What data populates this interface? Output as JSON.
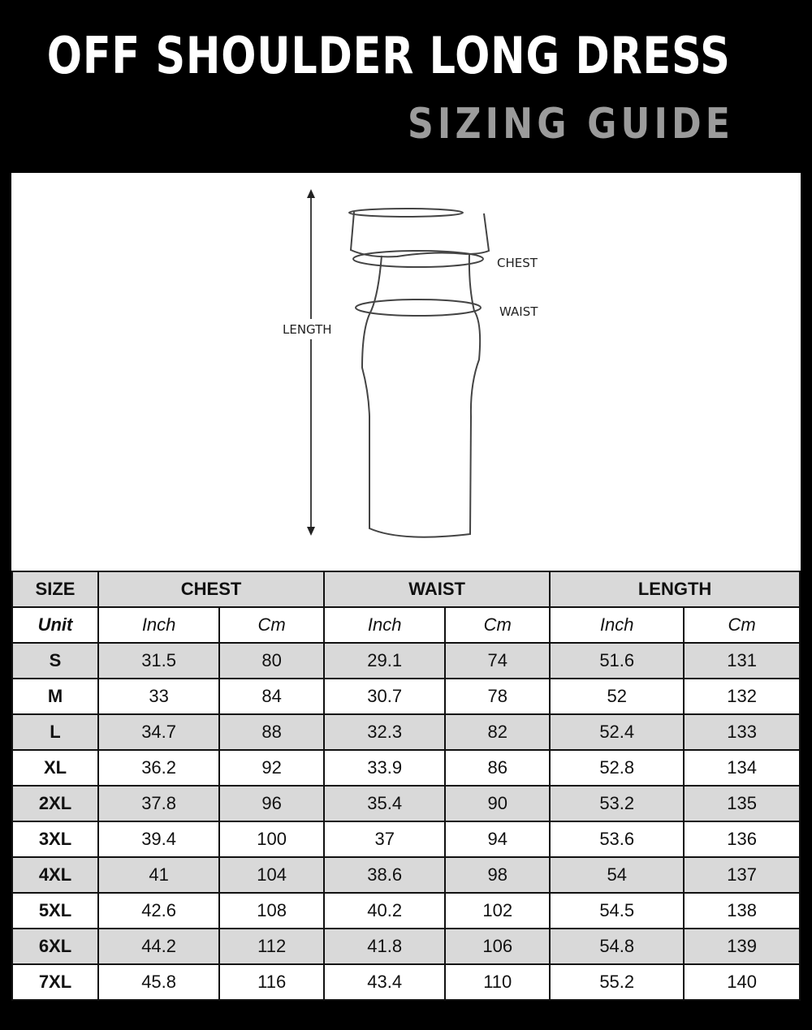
{
  "title": "OFF SHOULDER LONG DRESS",
  "subtitle": "SIZING GUIDE",
  "diagram": {
    "length_label": "LENGTH",
    "chest_label": "CHEST",
    "waist_label": "WAIST"
  },
  "colors": {
    "background": "#000000",
    "subtitle": "#9b9b9b",
    "row_shade": "#d9d9d9"
  },
  "table": {
    "size_header": "SIZE",
    "groups": [
      "CHEST",
      "WAIST",
      "LENGTH"
    ],
    "unit_label": "Unit",
    "units": [
      "Inch",
      "Cm",
      "Inch",
      "Cm",
      "Inch",
      "Cm"
    ],
    "rows": [
      {
        "size": "S",
        "values": [
          "31.5",
          "80",
          "29.1",
          "74",
          "51.6",
          "131"
        ]
      },
      {
        "size": "M",
        "values": [
          "33",
          "84",
          "30.7",
          "78",
          "52",
          "132"
        ]
      },
      {
        "size": "L",
        "values": [
          "34.7",
          "88",
          "32.3",
          "82",
          "52.4",
          "133"
        ]
      },
      {
        "size": "XL",
        "values": [
          "36.2",
          "92",
          "33.9",
          "86",
          "52.8",
          "134"
        ]
      },
      {
        "size": "2XL",
        "values": [
          "37.8",
          "96",
          "35.4",
          "90",
          "53.2",
          "135"
        ]
      },
      {
        "size": "3XL",
        "values": [
          "39.4",
          "100",
          "37",
          "94",
          "53.6",
          "136"
        ]
      },
      {
        "size": "4XL",
        "values": [
          "41",
          "104",
          "38.6",
          "98",
          "54",
          "137"
        ]
      },
      {
        "size": "5XL",
        "values": [
          "42.6",
          "108",
          "40.2",
          "102",
          "54.5",
          "138"
        ]
      },
      {
        "size": "6XL",
        "values": [
          "44.2",
          "112",
          "41.8",
          "106",
          "54.8",
          "139"
        ]
      },
      {
        "size": "7XL",
        "values": [
          "45.8",
          "116",
          "43.4",
          "110",
          "55.2",
          "140"
        ]
      }
    ]
  }
}
